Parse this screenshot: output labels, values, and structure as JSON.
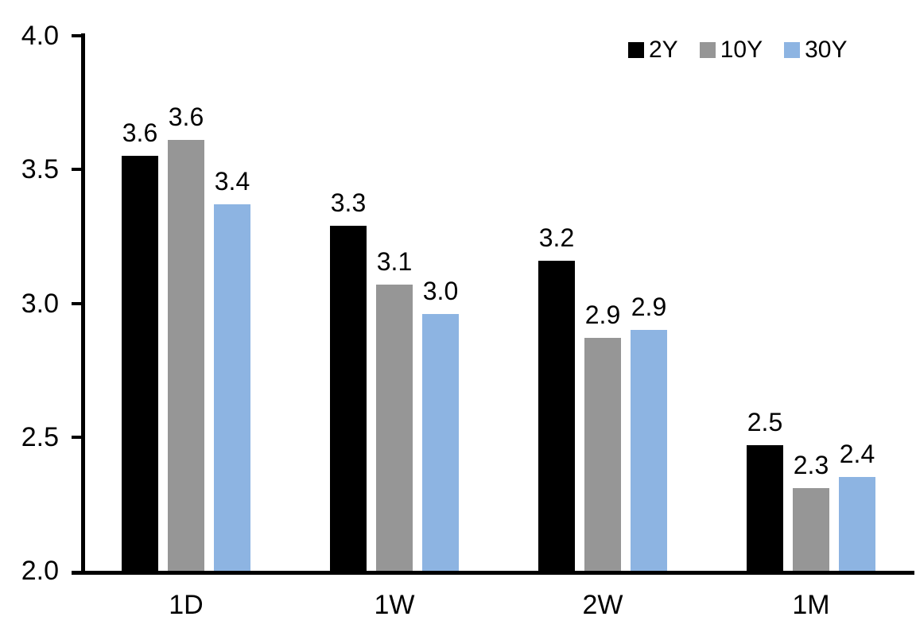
{
  "chart_data": {
    "type": "bar",
    "title": "",
    "xlabel": "",
    "ylabel": "",
    "categories": [
      "1D",
      "1W",
      "2W",
      "1M"
    ],
    "series": [
      {
        "name": "2Y",
        "color": "#000000",
        "values": [
          3.55,
          3.29,
          3.16,
          2.47
        ],
        "labels": [
          "3.6",
          "3.3",
          "3.2",
          "2.5"
        ]
      },
      {
        "name": "10Y",
        "color": "#969696",
        "values": [
          3.61,
          3.07,
          2.87,
          2.31
        ],
        "labels": [
          "3.6",
          "3.1",
          "2.9",
          "2.3"
        ]
      },
      {
        "name": "30Y",
        "color": "#8DB4E2",
        "values": [
          3.37,
          2.96,
          2.9,
          2.35
        ],
        "labels": [
          "3.4",
          "3.0",
          "2.9",
          "2.4"
        ]
      }
    ],
    "ylim": [
      2.0,
      4.0
    ],
    "yticks": [
      {
        "value": 2.0,
        "label": "2.0"
      },
      {
        "value": 2.5,
        "label": "2.5"
      },
      {
        "value": 3.0,
        "label": "3.0"
      },
      {
        "value": 3.5,
        "label": "3.5"
      },
      {
        "value": 4.0,
        "label": "4.0"
      }
    ],
    "grid": false,
    "legend_position": "top-right"
  },
  "colors": {
    "axis": "#000000",
    "text": "#000000",
    "background": "#FFFFFF"
  }
}
